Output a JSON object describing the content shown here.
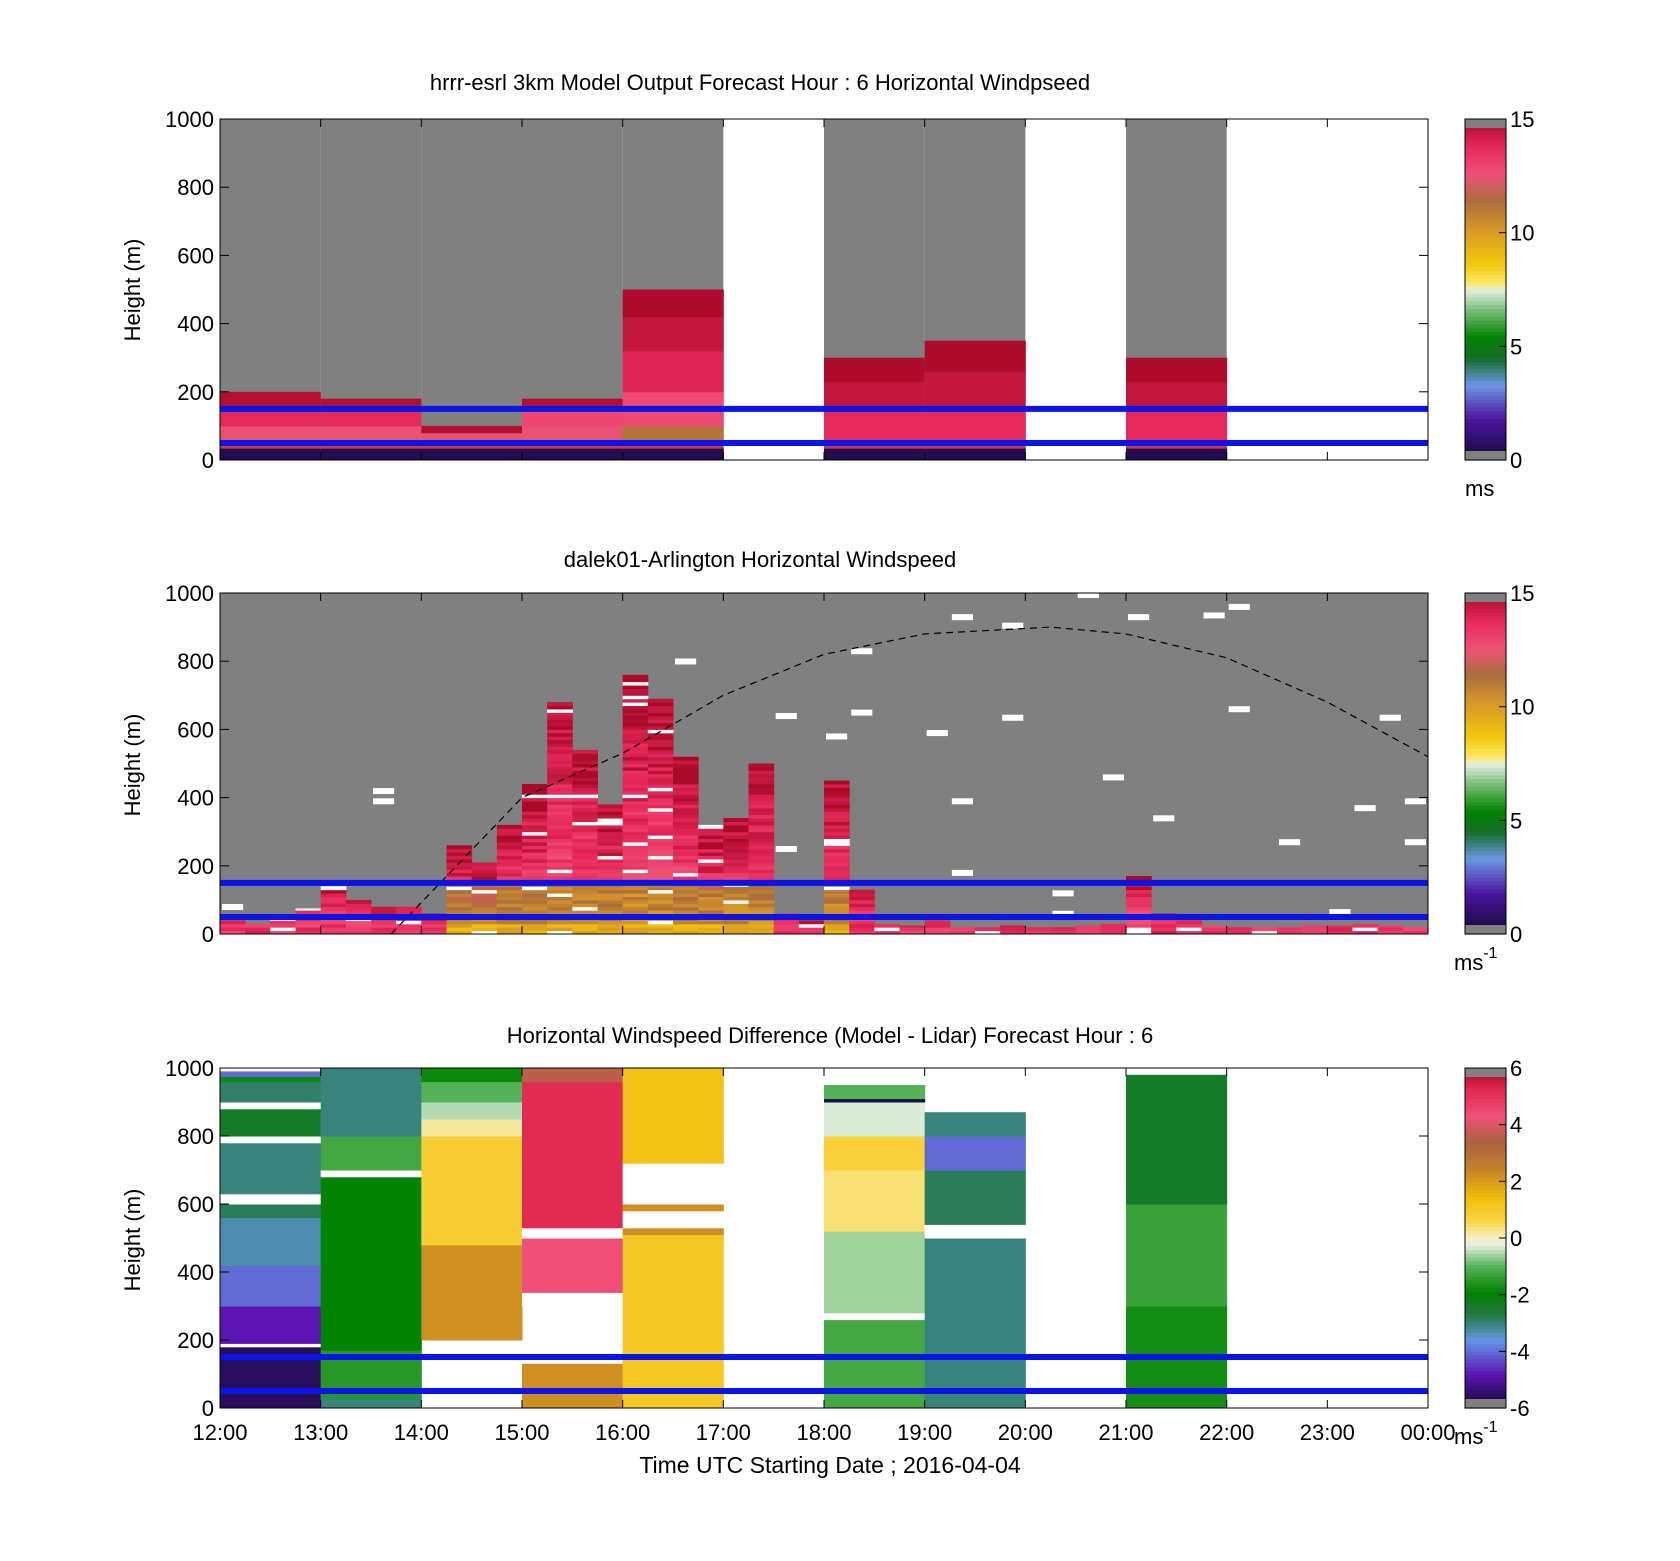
{
  "figure": {
    "xlabel": "Time UTC  Starting Date ; 2016-04-04",
    "x_ticks": [
      "12:00",
      "13:00",
      "14:00",
      "15:00",
      "16:00",
      "17:00",
      "18:00",
      "19:00",
      "20:00",
      "21:00",
      "22:00",
      "23:00",
      "00:00"
    ]
  },
  "chart_data": [
    {
      "type": "heatmap",
      "title": "hrrr-esrl 3km Model Output   Forecast Hour : 6 Horizontal Windpseed",
      "ylabel": "Height (m)",
      "ylim": [
        0,
        1000
      ],
      "y_ticks": [
        0,
        200,
        400,
        600,
        800,
        1000
      ],
      "xlim_hours": [
        12,
        24
      ],
      "grid": false,
      "colorbar": {
        "min": 0,
        "max": 15,
        "ticks": [
          0,
          5,
          10,
          15
        ],
        "unit": "ms"
      },
      "reference_lines_m": [
        50,
        150
      ],
      "columns": [
        {
          "start": "12:00",
          "top_m": 200,
          "gradient_base": 35,
          "cells": [
            {
              "from": 0,
              "to": 35,
              "value": 0.5
            },
            {
              "from": 35,
              "to": 60,
              "value": 10.0
            },
            {
              "from": 60,
              "to": 100,
              "value": 12.5
            },
            {
              "from": 100,
              "to": 160,
              "value": 13.8
            },
            {
              "from": 160,
              "to": 200,
              "value": 14.8
            }
          ]
        },
        {
          "start": "13:00",
          "top_m": 180,
          "gradient_base": 35,
          "cells": [
            {
              "from": 0,
              "to": 35,
              "value": 0.5
            },
            {
              "from": 35,
              "to": 60,
              "value": 10.0
            },
            {
              "from": 60,
              "to": 100,
              "value": 12.5
            },
            {
              "from": 100,
              "to": 150,
              "value": 13.8
            },
            {
              "from": 150,
              "to": 180,
              "value": 14.8
            }
          ]
        },
        {
          "start": "14:00",
          "top_m": 100,
          "gradient_base": 35,
          "cells": [
            {
              "from": 0,
              "to": 35,
              "value": 0.5
            },
            {
              "from": 35,
              "to": 55,
              "value": 10.0
            },
            {
              "from": 55,
              "to": 80,
              "value": 12.5
            },
            {
              "from": 80,
              "to": 100,
              "value": 14.8
            }
          ]
        },
        {
          "start": "15:00",
          "top_m": 180,
          "gradient_base": 35,
          "cells": [
            {
              "from": 0,
              "to": 35,
              "value": 0.5
            },
            {
              "from": 35,
              "to": 60,
              "value": 10.0
            },
            {
              "from": 60,
              "to": 100,
              "value": 12.5
            },
            {
              "from": 100,
              "to": 150,
              "value": 12.9
            },
            {
              "from": 150,
              "to": 180,
              "value": 14.8
            }
          ]
        },
        {
          "start": "16:00",
          "top_m": 500,
          "gradient_base": 35,
          "cells": [
            {
              "from": 0,
              "to": 35,
              "value": 0.5
            },
            {
              "from": 35,
              "to": 60,
              "value": 10.0
            },
            {
              "from": 60,
              "to": 100,
              "value": 11.2
            },
            {
              "from": 100,
              "to": 200,
              "value": 12.8
            },
            {
              "from": 200,
              "to": 320,
              "value": 13.9
            },
            {
              "from": 320,
              "to": 420,
              "value": 14.5
            },
            {
              "from": 420,
              "to": 500,
              "value": 14.9
            }
          ]
        },
        {
          "start": "18:00",
          "top_m": 300,
          "gradient_base": 35,
          "cells": [
            {
              "from": 0,
              "to": 35,
              "value": 0.5
            },
            {
              "from": 35,
              "to": 60,
              "value": 12.5
            },
            {
              "from": 60,
              "to": 150,
              "value": 13.8
            },
            {
              "from": 150,
              "to": 230,
              "value": 14.5
            },
            {
              "from": 230,
              "to": 300,
              "value": 14.9
            }
          ]
        },
        {
          "start": "19:00",
          "top_m": 350,
          "gradient_base": 35,
          "cells": [
            {
              "from": 0,
              "to": 35,
              "value": 0.5
            },
            {
              "from": 35,
              "to": 60,
              "value": 12.5
            },
            {
              "from": 60,
              "to": 150,
              "value": 13.8
            },
            {
              "from": 150,
              "to": 260,
              "value": 14.5
            },
            {
              "from": 260,
              "to": 350,
              "value": 14.9
            }
          ]
        },
        {
          "start": "21:00",
          "top_m": 300,
          "gradient_base": 35,
          "cells": [
            {
              "from": 0,
              "to": 35,
              "value": 0.5
            },
            {
              "from": 35,
              "to": 60,
              "value": 12.5
            },
            {
              "from": 60,
              "to": 150,
              "value": 13.8
            },
            {
              "from": 150,
              "to": 230,
              "value": 14.5
            },
            {
              "from": 230,
              "to": 300,
              "value": 14.9
            }
          ]
        }
      ],
      "missing_hours": [
        "17:00",
        "20:00",
        "22:00",
        "23:00"
      ]
    },
    {
      "type": "heatmap",
      "title": "dalek01-Arlington  Horizontal Windspeed",
      "ylabel": "Height (m)",
      "ylim": [
        0,
        1000
      ],
      "y_ticks": [
        0,
        200,
        400,
        600,
        800,
        1000
      ],
      "xlim_hours": [
        12,
        24
      ],
      "grid": false,
      "colorbar": {
        "min": 0,
        "max": 15,
        "ticks": [
          0,
          5,
          10,
          15
        ],
        "unit": "ms",
        "unit_exponent": "-1"
      },
      "reference_lines_m": [
        50,
        150
      ],
      "time_step_minutes": 15,
      "profiles": [
        {
          "t": 12.0,
          "top": 40
        },
        {
          "t": 12.25,
          "top": 30
        },
        {
          "t": 12.5,
          "top": 45
        },
        {
          "t": 12.75,
          "top": 75
        },
        {
          "t": 13.0,
          "top": 140
        },
        {
          "t": 13.25,
          "top": 100
        },
        {
          "t": 13.5,
          "top": 80
        },
        {
          "t": 13.75,
          "top": 80
        },
        {
          "t": 14.0,
          "top": 60
        },
        {
          "t": 14.25,
          "top": 260
        },
        {
          "t": 14.5,
          "top": 210
        },
        {
          "t": 14.75,
          "top": 320
        },
        {
          "t": 15.0,
          "top": 440
        },
        {
          "t": 15.25,
          "top": 680
        },
        {
          "t": 15.5,
          "top": 540
        },
        {
          "t": 15.75,
          "top": 380
        },
        {
          "t": 16.0,
          "top": 760
        },
        {
          "t": 16.25,
          "top": 690
        },
        {
          "t": 16.5,
          "top": 520
        },
        {
          "t": 16.75,
          "top": 320
        },
        {
          "t": 17.0,
          "top": 340
        },
        {
          "t": 17.25,
          "top": 500
        },
        {
          "t": 17.5,
          "top": 60
        },
        {
          "t": 17.75,
          "top": 40
        },
        {
          "t": 18.0,
          "top": 450
        },
        {
          "t": 18.25,
          "top": 130
        },
        {
          "t": 18.5,
          "top": 30
        },
        {
          "t": 18.75,
          "top": 25
        },
        {
          "t": 19.0,
          "top": 40
        },
        {
          "t": 19.25,
          "top": 20
        },
        {
          "t": 19.5,
          "top": 20
        },
        {
          "t": 19.75,
          "top": 25
        },
        {
          "t": 20.0,
          "top": 20
        },
        {
          "t": 20.25,
          "top": 20
        },
        {
          "t": 20.5,
          "top": 25
        },
        {
          "t": 20.75,
          "top": 30
        },
        {
          "t": 21.0,
          "top": 170
        },
        {
          "t": 21.25,
          "top": 60
        },
        {
          "t": 21.5,
          "top": 40
        },
        {
          "t": 21.75,
          "top": 25
        },
        {
          "t": 22.0,
          "top": 20
        },
        {
          "t": 22.25,
          "top": 20
        },
        {
          "t": 22.5,
          "top": 20
        },
        {
          "t": 22.75,
          "top": 25
        },
        {
          "t": 23.0,
          "top": 25
        },
        {
          "t": 23.25,
          "top": 30
        },
        {
          "t": 23.5,
          "top": 25
        },
        {
          "t": 23.75,
          "top": 20
        }
      ],
      "dashed_curve": {
        "peak_time": "20:15",
        "peak_height_m": 900,
        "points": [
          [
            13.7,
            0
          ],
          [
            15,
            400
          ],
          [
            16,
            530
          ],
          [
            17,
            700
          ],
          [
            18,
            820
          ],
          [
            19,
            880
          ],
          [
            20.25,
            900
          ],
          [
            21,
            880
          ],
          [
            22,
            810
          ],
          [
            23,
            680
          ],
          [
            24,
            520
          ]
        ]
      }
    },
    {
      "type": "heatmap",
      "title": "Horizontal Windspeed Difference (Model - Lidar) Forecast Hour : 6",
      "ylabel": "Height (m)",
      "ylim": [
        0,
        1000
      ],
      "y_ticks": [
        0,
        200,
        400,
        600,
        800,
        1000
      ],
      "xlim_hours": [
        12,
        24
      ],
      "grid": false,
      "colorbar": {
        "min": -6,
        "max": 6,
        "ticks": [
          -6,
          -4,
          -2,
          0,
          2,
          4,
          6
        ],
        "unit": "ms",
        "unit_exponent": "-1"
      },
      "reference_lines_m": [
        50,
        150
      ],
      "columns": [
        {
          "start": "12:00",
          "cells": [
            {
              "from": 0,
              "to": 180,
              "value": -5.6
            },
            {
              "from": 180,
              "to": 190,
              "value": 99
            },
            {
              "from": 190,
              "to": 300,
              "value": -4.8
            },
            {
              "from": 300,
              "to": 420,
              "value": -4.0
            },
            {
              "from": 420,
              "to": 560,
              "value": -3.3
            },
            {
              "from": 560,
              "to": 600,
              "value": -2.8
            },
            {
              "from": 600,
              "to": 630,
              "value": 99
            },
            {
              "from": 630,
              "to": 780,
              "value": -3.0
            },
            {
              "from": 780,
              "to": 800,
              "value": 99
            },
            {
              "from": 800,
              "to": 880,
              "value": -2.4
            },
            {
              "from": 880,
              "to": 900,
              "value": 99
            },
            {
              "from": 900,
              "to": 960,
              "value": -2.9
            },
            {
              "from": 960,
              "to": 975,
              "value": -1.8
            },
            {
              "from": 975,
              "to": 990,
              "value": -4.0
            }
          ]
        },
        {
          "start": "13:00",
          "cells": [
            {
              "from": 0,
              "to": 30,
              "value": -3.0
            },
            {
              "from": 30,
              "to": 170,
              "value": -1.5
            },
            {
              "from": 170,
              "to": 680,
              "value": -1.9
            },
            {
              "from": 680,
              "to": 700,
              "value": 99
            },
            {
              "from": 700,
              "to": 800,
              "value": -1.2
            },
            {
              "from": 800,
              "to": 1000,
              "value": -3.0
            }
          ]
        },
        {
          "start": "14:00",
          "cells": [
            {
              "from": 200,
              "to": 480,
              "value": 2.2
            },
            {
              "from": 480,
              "to": 800,
              "value": 0.9
            },
            {
              "from": 800,
              "to": 850,
              "value": 0.2
            },
            {
              "from": 850,
              "to": 900,
              "value": -0.5
            },
            {
              "from": 900,
              "to": 960,
              "value": -1.0
            },
            {
              "from": 960,
              "to": 1000,
              "value": -1.8
            }
          ]
        },
        {
          "start": "15:00",
          "cells": [
            {
              "from": 0,
              "to": 130,
              "value": 2.2
            },
            {
              "from": 300,
              "to": 340,
              "value": 99
            },
            {
              "from": 340,
              "to": 500,
              "value": 4.3
            },
            {
              "from": 500,
              "to": 530,
              "value": 99
            },
            {
              "from": 530,
              "to": 960,
              "value": 5.2
            },
            {
              "from": 960,
              "to": 1000,
              "value": 3.6
            }
          ]
        },
        {
          "start": "16:00",
          "cells": [
            {
              "from": 0,
              "to": 510,
              "value": 1.1
            },
            {
              "from": 510,
              "to": 530,
              "value": 2.2
            },
            {
              "from": 530,
              "to": 580,
              "value": 99
            },
            {
              "from": 580,
              "to": 600,
              "value": 2.2
            },
            {
              "from": 600,
              "to": 720,
              "value": 99
            },
            {
              "from": 720,
              "to": 1000,
              "value": 1.3
            }
          ]
        },
        {
          "start": "18:00",
          "cells": [
            {
              "from": 0,
              "to": 260,
              "value": -1.2
            },
            {
              "from": 260,
              "to": 280,
              "value": 99
            },
            {
              "from": 280,
              "to": 520,
              "value": -0.6
            },
            {
              "from": 520,
              "to": 700,
              "value": 0.4
            },
            {
              "from": 700,
              "to": 800,
              "value": 0.8
            },
            {
              "from": 800,
              "to": 900,
              "value": -0.3
            },
            {
              "from": 900,
              "to": 910,
              "value": -5.8
            },
            {
              "from": 910,
              "to": 950,
              "value": -1.0
            }
          ]
        },
        {
          "start": "19:00",
          "cells": [
            {
              "from": 0,
              "to": 500,
              "value": -3.0
            },
            {
              "from": 500,
              "to": 540,
              "value": 99
            },
            {
              "from": 540,
              "to": 700,
              "value": -2.8
            },
            {
              "from": 700,
              "to": 800,
              "value": -4.0
            },
            {
              "from": 800,
              "to": 870,
              "value": -3.0
            }
          ]
        },
        {
          "start": "21:00",
          "cells": [
            {
              "from": 0,
              "to": 300,
              "value": -1.7
            },
            {
              "from": 300,
              "to": 600,
              "value": -1.3
            },
            {
              "from": 600,
              "to": 980,
              "value": -2.4
            }
          ]
        }
      ],
      "missing_hours": [
        "17:00",
        "20:00",
        "22:00",
        "23:00"
      ]
    }
  ]
}
